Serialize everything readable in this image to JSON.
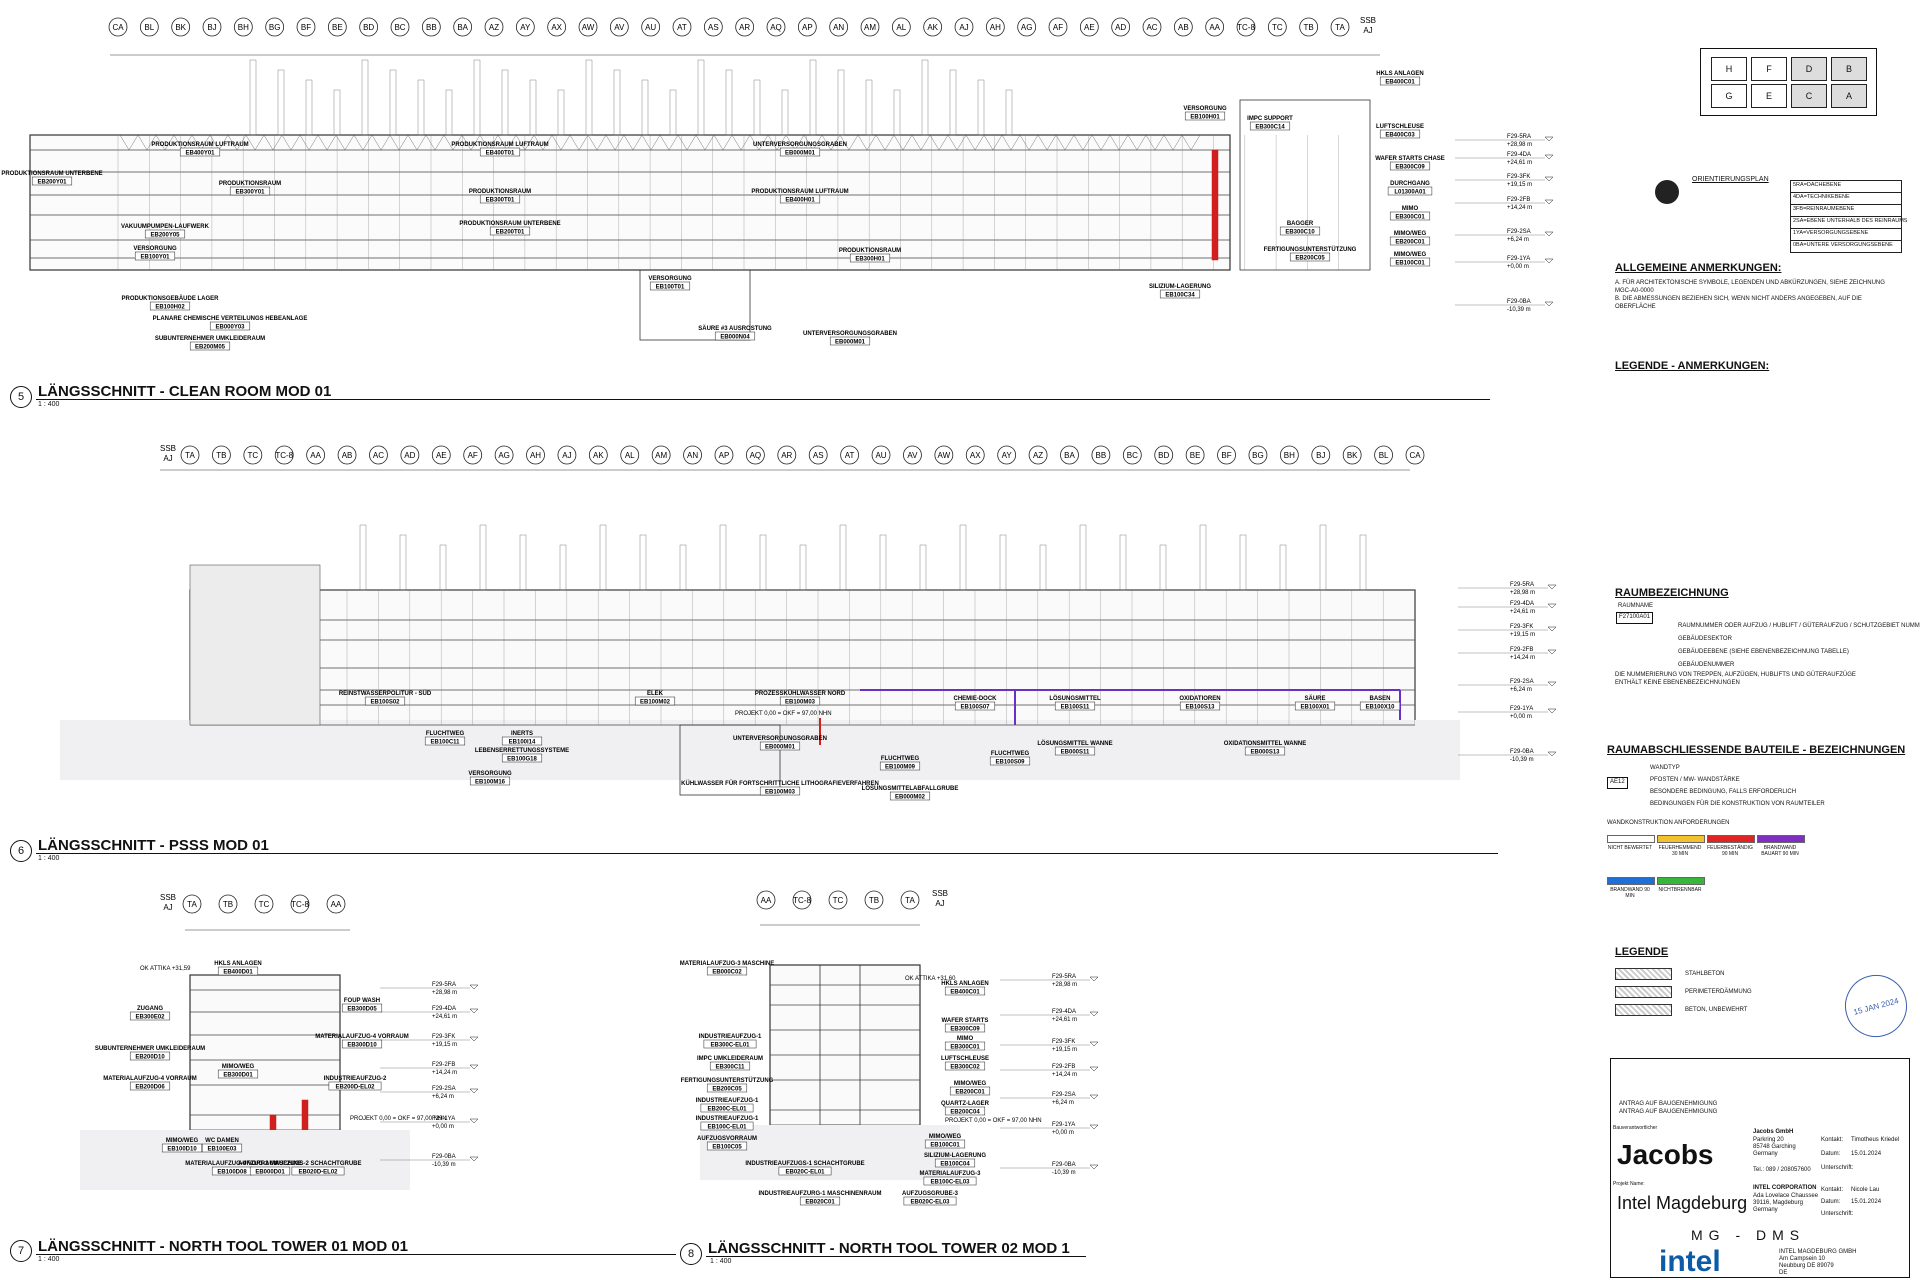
{
  "sections": [
    {
      "num": "5",
      "title": "LÄNGSSCHNITT - CLEAN ROOM MOD 01",
      "scale": "1 : 400"
    },
    {
      "num": "6",
      "title": "LÄNGSSCHNITT - PSSS MOD 01",
      "scale": "1 : 400"
    },
    {
      "num": "7",
      "title": "LÄNGSSCHNITT - NORTH TOOL TOWER 01 MOD 01",
      "scale": "1 : 400"
    },
    {
      "num": "8",
      "title": "LÄNGSSCHNITT - NORTH TOOL TOWER 02 MOD 1",
      "scale": "1 : 400"
    }
  ],
  "grid_top": [
    "CA",
    "BL",
    "BK",
    "BJ",
    "BH",
    "BG",
    "BF",
    "BE",
    "BD",
    "BC",
    "BB",
    "BA",
    "AZ",
    "AY",
    "AX",
    "AW",
    "AV",
    "AU",
    "AT",
    "AS",
    "AR",
    "AQ",
    "AP",
    "AN",
    "AM",
    "AL",
    "AK",
    "AJ",
    "AH",
    "AG",
    "AF",
    "AE",
    "AD",
    "AC",
    "AB",
    "AA",
    "TC-8",
    "TC",
    "TB",
    "TA"
  ],
  "grid_top_ssb": "SSB\nAJ",
  "grid_mid": [
    "TA",
    "TB",
    "TC",
    "TC-8",
    "AA",
    "AB",
    "AC",
    "AD",
    "AE",
    "AF",
    "AG",
    "AH",
    "AJ",
    "AK",
    "AL",
    "AM",
    "AN",
    "AP",
    "AQ",
    "AR",
    "AS",
    "AT",
    "AU",
    "AV",
    "AW",
    "AX",
    "AY",
    "AZ",
    "BA",
    "BB",
    "BC",
    "BD",
    "BE",
    "BF",
    "BG",
    "BH",
    "BJ",
    "BK",
    "BL",
    "CA"
  ],
  "grid_mid_ssb": "SSB\nAJ",
  "grid_s7": [
    "TA",
    "TB",
    "TC",
    "TC-8",
    "AA"
  ],
  "grid_s8": [
    "AA",
    "TC-8",
    "TC",
    "TB",
    "TA"
  ],
  "levels": [
    "F29-5RA",
    "F29-4DA",
    "F29-3FK",
    "F29-2FB",
    "F29-2SA",
    "F29-1YA",
    "F29-0BA"
  ],
  "level_values": [
    "+28,98 m",
    "+24,61 m",
    "+19,15 m",
    "+14,24 m",
    "+6,24 m",
    "+0,00 m",
    "-10,39 m"
  ],
  "s5_labels": [
    {
      "t": "PRODUKTIONSRAUM UNTERBENE",
      "c": "EB200Y01"
    },
    {
      "t": "PRODUKTIONSRAUM LUFTRAUM",
      "c": "EB400Y01"
    },
    {
      "t": "PRODUKTIONSRAUM",
      "c": "EB300Y01"
    },
    {
      "t": "VAKUUMPUMPEN-LAUFWERK",
      "c": "EB200Y05"
    },
    {
      "t": "VERSORGUNG",
      "c": "EB100Y01"
    },
    {
      "t": "PRODUKTIONSRAUM LUFTRAUM",
      "c": "EB400T01"
    },
    {
      "t": "PRODUKTIONSRAUM",
      "c": "EB300T01"
    },
    {
      "t": "PRODUKTIONSRAUM UNTERBENE",
      "c": "EB200T01"
    },
    {
      "t": "VERSORGUNG",
      "c": "EB100T01"
    },
    {
      "t": "UNTERVERSORGUNGSGRABEN",
      "c": "EB000M01"
    },
    {
      "t": "PRODUKTIONSRAUM LUFTRAUM",
      "c": "EB400H01"
    },
    {
      "t": "PRODUKTIONSRAUM",
      "c": "EB300H01"
    },
    {
      "t": "VERSORGUNG",
      "c": "EB100H01"
    },
    {
      "t": "IMPC SUPPORT",
      "c": "EB300C14"
    },
    {
      "t": "BAGGER",
      "c": "EB300C10"
    },
    {
      "t": "FERTIGUNGSUNTERSTÜTZUNG",
      "c": "EB200C05"
    },
    {
      "t": "SILIZIUM-LAGERUNG",
      "c": "EB100C34"
    },
    {
      "t": "PRODUKTIONSGEBÄUDE LAGER",
      "c": "EB100H02"
    },
    {
      "t": "PLANARE CHEMISCHE VERTEILUNGS HEBEANLAGE",
      "c": "EB000Y03"
    },
    {
      "t": "SUBUNTERNEHMER UMKLEIDERAUM",
      "c": "EB200M05"
    },
    {
      "t": "SÄURE #3 AUSROSTUNG",
      "c": "EB000N04"
    },
    {
      "t": "UNTERVERSORGUNGSGRABEN",
      "c": "EB000M01"
    }
  ],
  "s5_right_labels": [
    {
      "t": "HKLS ANLAGEN",
      "c": "EB400C01"
    },
    {
      "t": "LUFTSCHLEUSE",
      "c": "EB400C03"
    },
    {
      "t": "WAFER STARTS CHASE",
      "c": "EB300C09"
    },
    {
      "t": "DURCHGANG",
      "c": "L01300A01"
    },
    {
      "t": "MIMO",
      "c": "EB300C01"
    },
    {
      "t": "MIMO/WEG",
      "c": "EB200C01"
    },
    {
      "t": "MIMO/WEG",
      "c": "EB100C01"
    }
  ],
  "s6_labels": [
    {
      "t": "REINSTWASSERPOLITUR - SÜD",
      "c": "EB100S02"
    },
    {
      "t": "FLUCHTWEG",
      "c": "EB100C11"
    },
    {
      "t": "INERTS",
      "c": "EB100I14"
    },
    {
      "t": "LEBENSERRETTUNGSSYSTEME",
      "c": "EB100G18"
    },
    {
      "t": "VERSORGUNG",
      "c": "EB100M16"
    },
    {
      "t": "ELEK",
      "c": "EB100M02"
    },
    {
      "t": "PROZESSKÜHLWASSER NORD",
      "c": "EB100M03"
    },
    {
      "t": "UNTERVERSORGUNGSGRABEN",
      "c": "EB000M01"
    },
    {
      "t": "KÜHLWASSER FÜR FORTSCHRITTLICHE LITHOGRAFIEVERFAHREN",
      "c": "EB100M03"
    },
    {
      "t": "FLUCHTWEG",
      "c": "EB100M09"
    },
    {
      "t": "LÖSUNGSMITTELABFALLGRUBE",
      "c": "EB000M02"
    },
    {
      "t": "CHEMIE-DOCK",
      "c": "EB100S07"
    },
    {
      "t": "FLUCHTWEG",
      "c": "EB100S09"
    },
    {
      "t": "LÖSUNGSMITTEL",
      "c": "EB100S11"
    },
    {
      "t": "LÖSUNGSMITTEL WANNE",
      "c": "EB000S11"
    },
    {
      "t": "OXIDATIOREN",
      "c": "EB100S13"
    },
    {
      "t": "OXIDATIONSMITTEL WANNE",
      "c": "EB000S13"
    },
    {
      "t": "SÄURE",
      "c": "EB100X01"
    },
    {
      "t": "BASEN",
      "c": "EB100X10"
    }
  ],
  "s6_note": "PROJEKT 0,00 = OKF = 97,00 NHN",
  "s7_labels": [
    {
      "t": "HKLS ANLAGEN",
      "c": "EB400D01"
    },
    {
      "t": "ZUGANG",
      "c": "EB300E02"
    },
    {
      "t": "FOUP WASH",
      "c": "EB300D05"
    },
    {
      "t": "MATERIALAUFZUG-4 VORRAUM",
      "c": "EB300D10"
    },
    {
      "t": "SUBUNTERNEHMER UMKLEIDERAUM",
      "c": "EB200D10"
    },
    {
      "t": "MIMO/WEG",
      "c": "EB300D01"
    },
    {
      "t": "MATERIALAUFZUG-4 VORRAUM",
      "c": "EB200D06"
    },
    {
      "t": "INDUSTRIEAUFZUG-2",
      "c": "EB200D-EL02"
    },
    {
      "t": "MIMO/WEG",
      "c": "EB100D10"
    },
    {
      "t": "WC DAMEN",
      "c": "EB100E03"
    },
    {
      "t": "MATERIALAUFZUG-4 VORRAUM",
      "c": "EB100D08"
    },
    {
      "t": "AUFZUG-2 MASCHINE",
      "c": "EB000D01"
    },
    {
      "t": "AUFZUGS-2 SCHACHTGRUBE",
      "c": "EB020D-EL02"
    }
  ],
  "s7_note": "PROJEKT 0,00 = OKF = 97,00 NHN",
  "s7_attika": "OK ATTIKA +31,59",
  "s8_labels": [
    {
      "t": "MATERIALAUFZUG-3 MASCHINE",
      "c": "EB000C02"
    },
    {
      "t": "HKLS ANLAGEN",
      "c": "EB400C01"
    },
    {
      "t": "WAFER STARTS",
      "c": "EB300C09"
    },
    {
      "t": "INDUSTRIEAUFZUG-1",
      "c": "EB300C-EL01"
    },
    {
      "t": "IMPC UMKLEIDERAUM",
      "c": "EB300C11"
    },
    {
      "t": "MIMO",
      "c": "EB300C01"
    },
    {
      "t": "LUFTSCHLEUSE",
      "c": "EB300C02"
    },
    {
      "t": "FERTIGUNGSUNTERSTÜTZUNG",
      "c": "EB200C05"
    },
    {
      "t": "MIMO/WEG",
      "c": "EB200C01"
    },
    {
      "t": "INDUSTRIEAUFZUG-1",
      "c": "EB200C-EL01"
    },
    {
      "t": "QUARTZ-LAGER",
      "c": "EB200C04"
    },
    {
      "t": "INDUSTRIEAUFZUG-1",
      "c": "EB100C-EL01"
    },
    {
      "t": "AUFZUGSVORRAUM",
      "c": "EB100C05"
    },
    {
      "t": "MIMO/WEG",
      "c": "EB100C01"
    },
    {
      "t": "SILIZIUM-LAGERUNG",
      "c": "EB100C04"
    },
    {
      "t": "INDUSTRIEAUFZUGS-1 SCHACHTGRUBE",
      "c": "EB020C-EL01"
    },
    {
      "t": "MATERIALAUFZUG-3",
      "c": "EB100C-EL03"
    },
    {
      "t": "INDUSTRIEAUFZURG-1 MASCHINENRAUM",
      "c": "EB020C01"
    },
    {
      "t": "AUFZUGSGRUBE-3",
      "c": "EB020C-EL03"
    }
  ],
  "s8_attika": "OK ATTIKA +31,60",
  "s8_note": "PROJEKT 0,00 = OKF = 97,00 NHN",
  "right": {
    "orient_title": "ORIENTIERUNGSPLAN",
    "key_cells": [
      "H",
      "F",
      "D",
      "B",
      "G",
      "E",
      "C",
      "A"
    ],
    "orient_levels": [
      "5RA=DACHEBENE",
      "4DA=TECHNIKEBENE",
      "3FB=REINRAUMEBENE",
      "2SA=EBENE UNTERHALB DES REINRAUMS",
      "1YA=VERSORGUNGSEBENE",
      "0BA=UNTERE VERSORGUNGSEBENE"
    ],
    "gen_title": "ALLGEMEINE ANMERKUNGEN:",
    "gen_a": "A.   FÜR ARCHITEKTONISCHE SYMBOLE, LEGENDEN UND ABKÜRZUNGEN, SIEHE ZEICHNUNG",
    "gen_a2": "      MGC-A0-0000",
    "gen_b": "B.   DIE ABMESSUNGEN BEZIEHEN SICH, WENN NICHT ANDERS ANGEGEBEN, AUF DIE",
    "gen_b2": "      OBERFLÄCHE",
    "leg_title": "LEGENDE - ANMERKUNGEN:",
    "raum_title": "RAUMBEZEICHNUNG",
    "raum_name": "RAUMNAME",
    "raum_code": "F27100A01",
    "raum_items": [
      "RAUMNUMMER ODER AUFZUG / HUBLIFT / GÜTERAUFZUG / SCHUTZGEBIET NUMMER",
      "GEBÄUDESEKTOR",
      "GEBÄUDEEBENE (SIEHE EBENENBEZEICHNUNG TABELLE)",
      "GEBÄUDENUMMER"
    ],
    "raum_note": "DIE NUMMERIERUNG VON TREPPEN, AUFZÜGEN, HUBLIFTS UND GÜTERAUFZÜGE",
    "raum_note2": "ENTHÄLT KEINE EBENENBEZEICHNUNGEN",
    "bau_title": "RAUMABSCHLIESSENDE BAUTEILE - BEZEICHNUNGEN",
    "bau_items": [
      "WANDTYP",
      "PFOSTEN / MW- WANDSTÄRKE",
      "BESONDERE BEDINGUNG, FALLS ERFORDERLICH",
      "BEDINGUNGEN FÜR DIE KONSTRUKTION VON RAUMTEILER"
    ],
    "bau_code": "AE12",
    "bau_req": "WANDKONSTRUKTION ANFORDERUNGEN",
    "fire": [
      {
        "l": "NICHT BEWERTET",
        "c": "#ffffff"
      },
      {
        "l": "FEUERHEMMEND 30 MIN",
        "c": "#f2c12e"
      },
      {
        "l": "FEUERBESTÄNDIG 90 MIN",
        "c": "#e02424"
      },
      {
        "l": "BRANDWAND BAUART 90 MIN",
        "c": "#7e2fbf"
      },
      {
        "l": "BRANDWAND 90 MIN",
        "c": "#1f6fd9"
      },
      {
        "l": "NICHTBRENNBAR",
        "c": "#38b53b"
      }
    ],
    "legend_title": "LEGENDE",
    "legend_items": [
      "STAHLBETON",
      "PERIMETERDÄMMUNG",
      "BETON, UNBEWEHRT"
    ],
    "stamp": "15 JAN 2024"
  },
  "titleblock": {
    "rev1": "ANTRAG AUF BAUGENEHMIGUNG",
    "rev2": "ANTRAG AUF BAUGENEHMIGUNG",
    "bauverant": "Bauverantwortlicher",
    "jacobs": "Jacobs",
    "jacobs_co": "Jacobs GmbH",
    "jacobs_addr1": "Parkring 20",
    "jacobs_addr2": "85748 Garching",
    "jacobs_addr3": "Germany",
    "jacobs_tel": "Tel.: 089 / 208057600",
    "kontakt": "Kontakt:",
    "kontakt1": "Timotheus Kriedel",
    "datum": "Datum:",
    "datum1": "15.01.2024",
    "unterschrift": "Unterschrift:",
    "projektname": "Projekt Name:",
    "project": "Intel Magdeburg",
    "intel_co": "INTEL CORPORATION",
    "intel_addr1": "Ada Lovelace Chaussee",
    "intel_addr2": "39116, Magdeburg",
    "intel_addr3": "Germany",
    "kontakt2": "Nicole Lau",
    "datum2": "15.01.2024",
    "mgdms": "MG - DMS",
    "intel": "intel",
    "intel_gmbh": "INTEL MAGDEBURG GMBH",
    "intel_gmbh1": "Am Campsein 10",
    "intel_gmbh2": "Neubburg DE 89079",
    "intel_gmbh3": "DE"
  }
}
